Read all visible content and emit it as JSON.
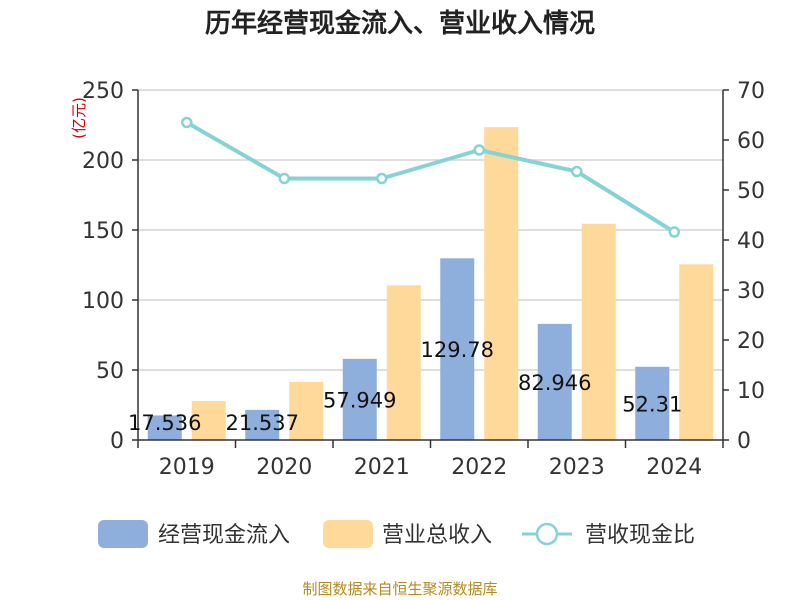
{
  "title": "历年经营现金流入、营业收入情况",
  "source_note": "制图数据来自恒生聚源数据库",
  "chart_data": {
    "type": "bar",
    "categories": [
      "2019",
      "2020",
      "2021",
      "2022",
      "2023",
      "2024"
    ],
    "series": [
      {
        "name": "经营现金流入",
        "type": "bar",
        "axis": "left",
        "color": "#8eaedb",
        "values": [
          17.536,
          21.537,
          57.949,
          129.78,
          82.946,
          52.31
        ],
        "labels": [
          "17.536",
          "21.537",
          "57.949",
          "129.78",
          "82.946",
          "52.31"
        ]
      },
      {
        "name": "营业总收入",
        "type": "bar",
        "axis": "left",
        "color": "#ffd999",
        "values": [
          27.8,
          41.5,
          110.5,
          223.5,
          154.5,
          125.5
        ]
      },
      {
        "name": "营收现金比",
        "type": "line",
        "axis": "right",
        "color": "#86d3d6",
        "values": [
          63.5,
          52.3,
          52.3,
          58.0,
          53.7,
          41.6
        ]
      }
    ],
    "ylabel_left": "(亿元)",
    "ylabel_right": "%",
    "ylim_left": [
      0,
      250
    ],
    "yticks_left": [
      "0",
      "50",
      "100",
      "150",
      "200",
      "250"
    ],
    "ylim_right": [
      0,
      70
    ],
    "yticks_right": [
      "0",
      "10",
      "20",
      "30",
      "40",
      "50",
      "60",
      "70"
    ],
    "grid": true,
    "legend_position": "bottom"
  }
}
